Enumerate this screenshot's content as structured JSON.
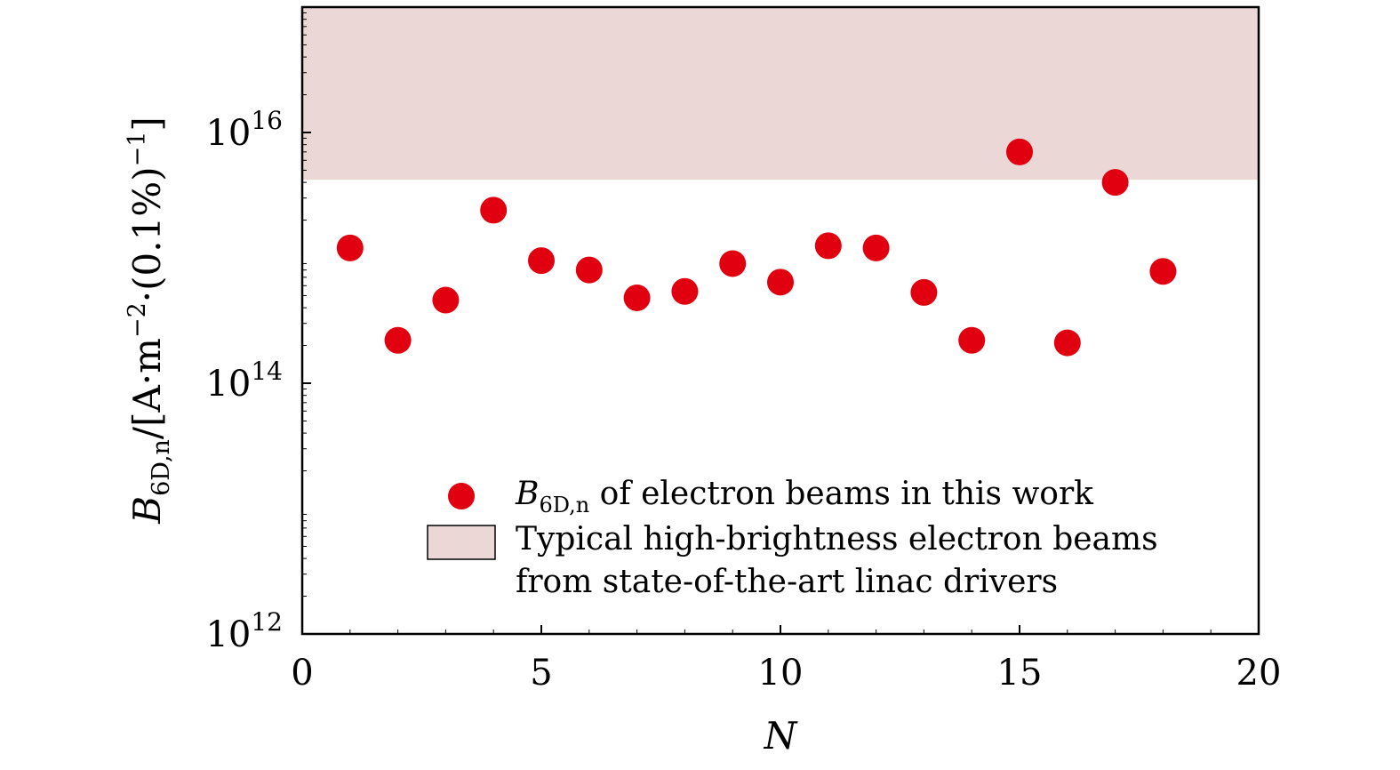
{
  "chart_data": {
    "type": "scatter",
    "x_axis": {
      "label": "N",
      "range": [
        0,
        20
      ],
      "ticks": [
        0,
        5,
        10,
        15,
        20
      ],
      "tick_labels": [
        "0",
        "5",
        "10",
        "15",
        "20"
      ]
    },
    "y_axis": {
      "label_base": "B",
      "label_subscript": "6D,n",
      "label_units_a": "/[A·m",
      "label_exp": "−2",
      "label_units_b": "·(0.1%)",
      "label_exp2": "−1",
      "label_close": "]",
      "scale": "log",
      "range": [
        1000000000000.0,
        1e+17
      ],
      "ticks": [
        1000000000000.0,
        100000000000000.0,
        1e+16
      ],
      "tick_labels": [
        {
          "base": "10",
          "exp": "12"
        },
        {
          "base": "10",
          "exp": "14"
        },
        {
          "base": "10",
          "exp": "16"
        }
      ]
    },
    "band": {
      "y_min": 4200000000000000.0,
      "y_max": 1e+17,
      "color": "#ecd7d7"
    },
    "series": [
      {
        "color": "#e00010",
        "x": [
          1,
          2,
          3,
          4,
          5,
          6,
          7,
          8,
          9,
          10,
          11,
          12,
          13,
          14,
          15,
          16,
          17,
          18
        ],
        "y": [
          1200000000000000.0,
          220000000000000.0,
          460000000000000.0,
          2400000000000000.0,
          950000000000000.0,
          800000000000000.0,
          480000000000000.0,
          540000000000000.0,
          900000000000000.0,
          640000000000000.0,
          1250000000000000.0,
          1200000000000000.0,
          530000000000000.0,
          220000000000000.0,
          7000000000000000.0,
          210000000000000.0,
          4000000000000000.0,
          780000000000000.0
        ]
      }
    ],
    "legend": {
      "placement": "bottom-center",
      "items": [
        {
          "kind": "marker",
          "symbol": "B",
          "subscript": "6D,n",
          "text": " of electron beams in this work"
        },
        {
          "kind": "patch",
          "text_line1": "Typical high-brightness electron beams",
          "text_line2": "from state-of-the-art linac drivers"
        }
      ]
    },
    "grid": false
  }
}
